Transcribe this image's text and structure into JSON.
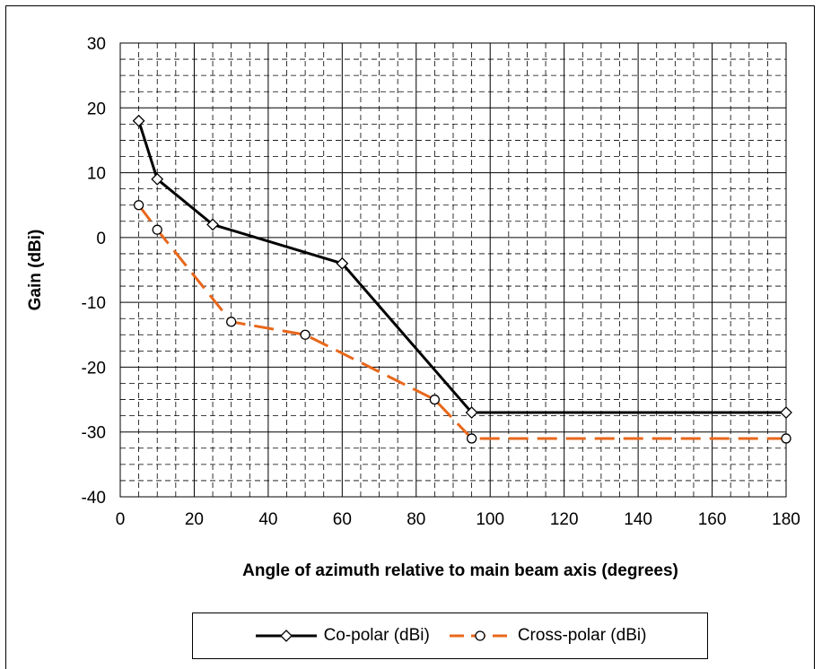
{
  "chart_data": {
    "type": "line",
    "title": "",
    "xlabel": "Angle of azimuth relative to main beam axis (degrees)",
    "ylabel": "Gain (dBi)",
    "xlim": [
      0,
      180
    ],
    "ylim": [
      -40,
      30
    ],
    "xticks": [
      0,
      20,
      40,
      60,
      80,
      100,
      120,
      140,
      160,
      180
    ],
    "yticks": [
      30,
      20,
      10,
      0,
      -10,
      -20,
      -30,
      -40
    ],
    "grid": "major solid, minor dashed",
    "legend_position": "bottom",
    "series": [
      {
        "name": "Co-polar (dBi)",
        "color": "#000000",
        "line_style": "solid",
        "marker": "diamond",
        "x": [
          5,
          10,
          25,
          60,
          95,
          180
        ],
        "y": [
          18,
          9,
          2,
          -4,
          -27,
          -27
        ]
      },
      {
        "name": "Cross-polar (dBi)",
        "color": "#E8671B",
        "line_style": "dashed",
        "marker": "circle",
        "x": [
          5,
          10,
          30,
          50,
          85,
          95,
          180
        ],
        "y": [
          5,
          1.2,
          -13,
          -15,
          -25,
          -31,
          -31
        ]
      }
    ]
  }
}
